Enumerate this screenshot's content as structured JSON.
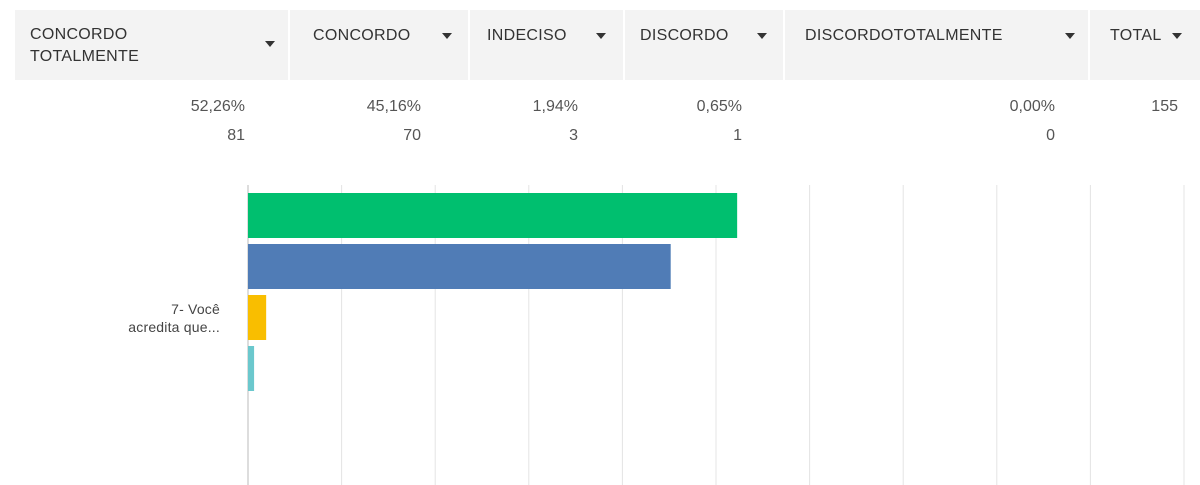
{
  "table": {
    "total_header": "TOTAL",
    "total": 155
  },
  "chart_data": {
    "type": "bar",
    "orientation": "horizontal",
    "categories": [
      "7- Você acredita que..."
    ],
    "series": [
      {
        "name": "CONCORDO TOTALMENTE",
        "color": "#00bf6f",
        "values": [
          52.26
        ],
        "value_labels": [
          "52,26%"
        ],
        "counts": [
          81
        ]
      },
      {
        "name": "CONCORDO",
        "color": "#507cb6",
        "values": [
          45.16
        ],
        "value_labels": [
          "45,16%"
        ],
        "counts": [
          70
        ]
      },
      {
        "name": "INDECISO",
        "color": "#f9be00",
        "values": [
          1.94
        ],
        "value_labels": [
          "1,94%"
        ],
        "counts": [
          3
        ]
      },
      {
        "name": "DISCORDO",
        "color": "#6bc8cd",
        "values": [
          0.65
        ],
        "value_labels": [
          "0,65%"
        ],
        "counts": [
          1
        ]
      },
      {
        "name": "DISCORDOTOTALMENTE",
        "color": "#ff8b4f",
        "values": [
          0.0
        ],
        "value_labels": [
          "0,00%"
        ],
        "counts": [
          0
        ]
      }
    ],
    "xlim": [
      0,
      100
    ],
    "xticks": [
      0,
      10,
      20,
      30,
      40,
      50,
      60,
      70,
      80,
      90,
      100
    ],
    "grid": true
  }
}
